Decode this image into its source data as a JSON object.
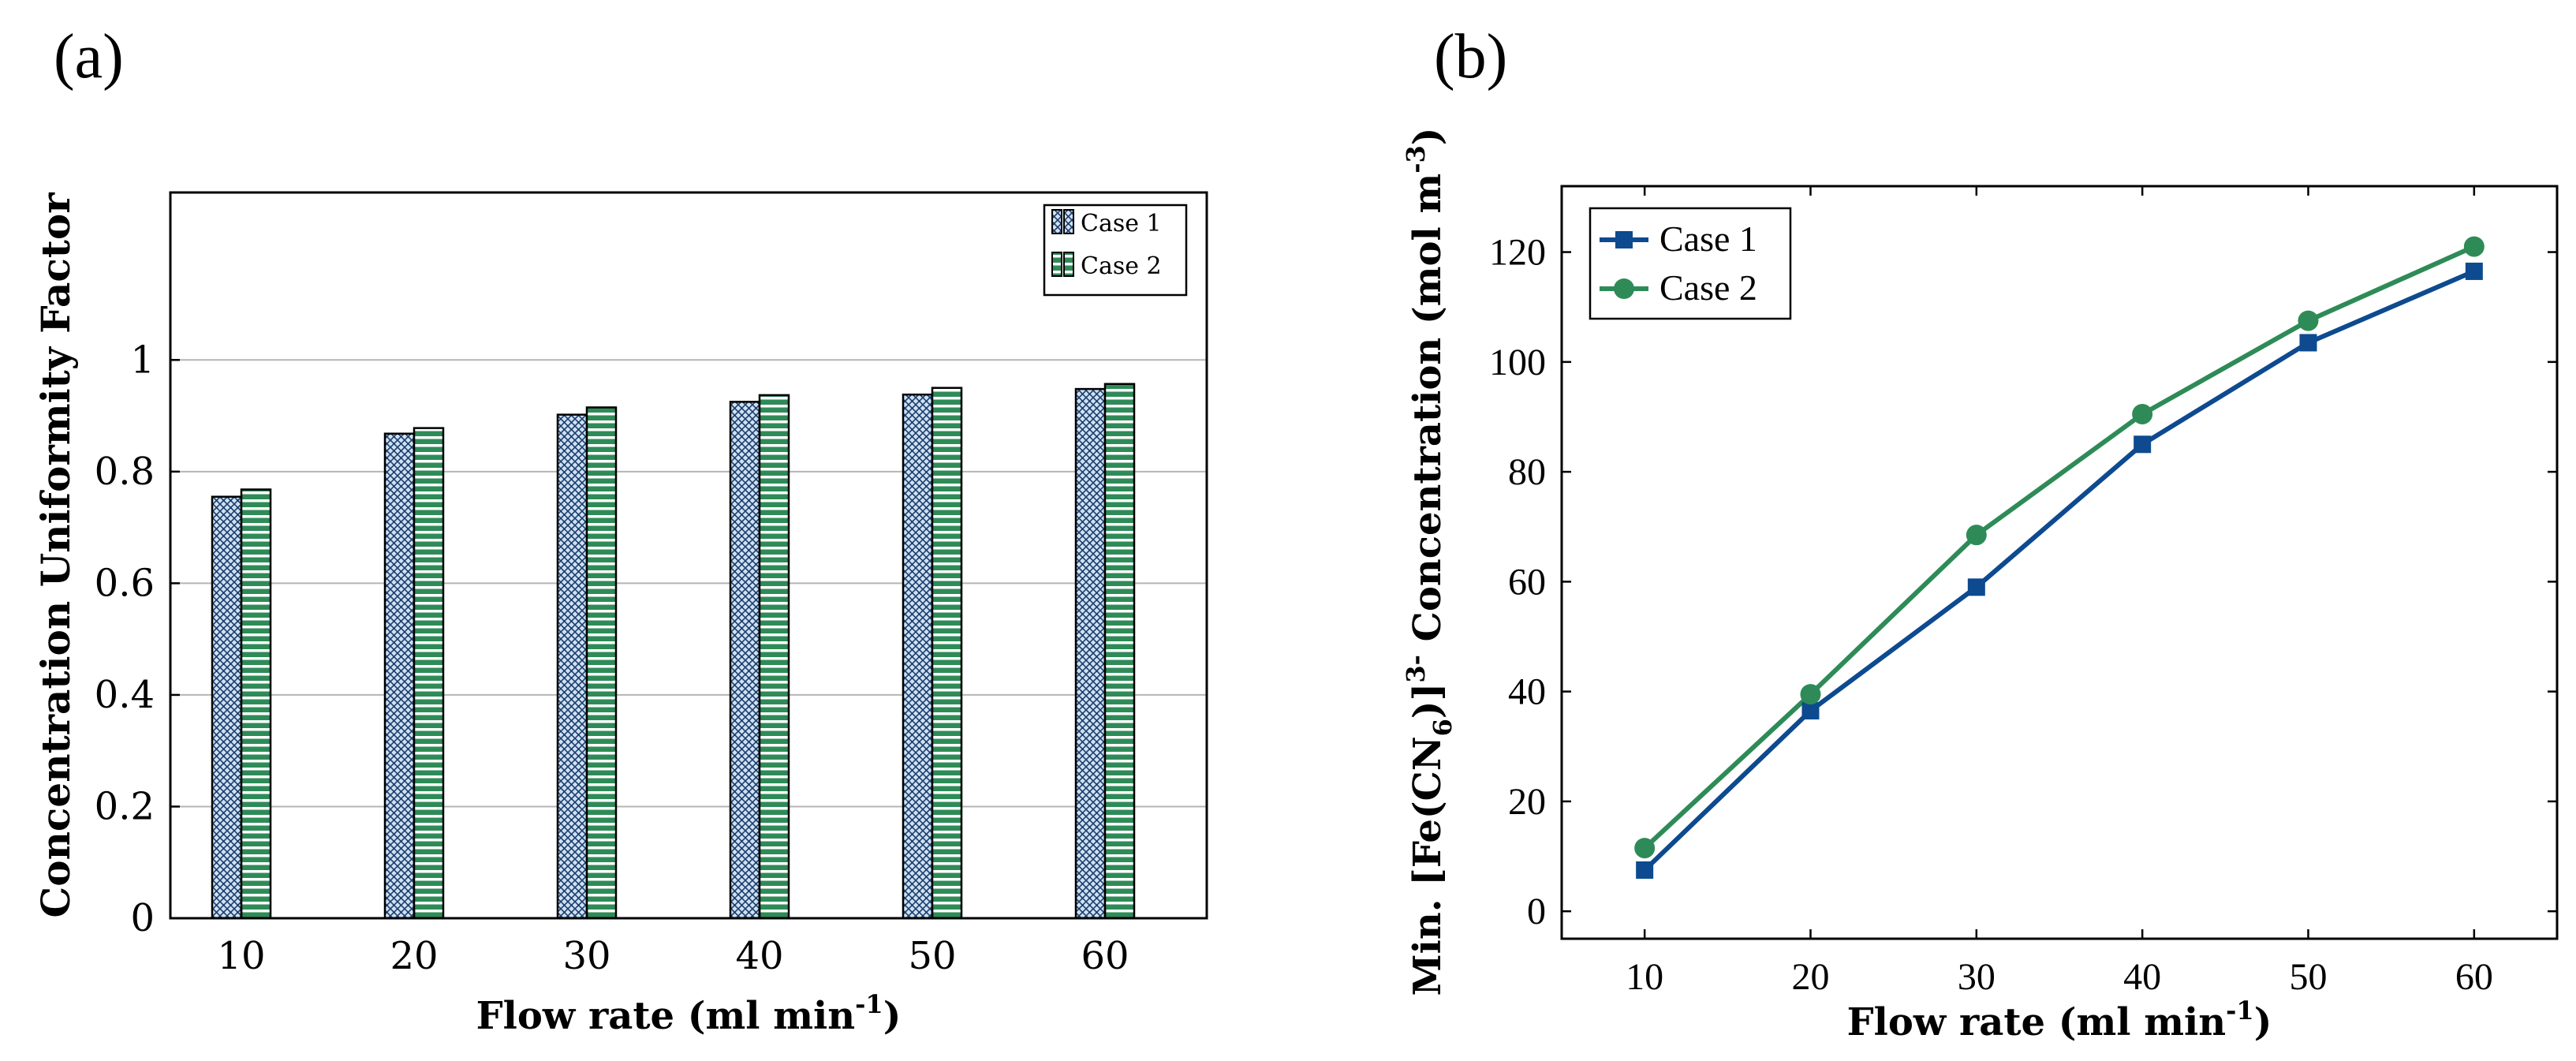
{
  "chart_data": [
    {
      "panel_label": "(a)",
      "type": "bar",
      "ylabel": "Concentration Uniformity Factor",
      "xlabel": "Flow rate (ml min",
      "xlabel_sup": "-1",
      "xlabel_end": ")",
      "categories": [
        "10",
        "20",
        "30",
        "40",
        "50",
        "60"
      ],
      "ylim": [
        0,
        1.3
      ],
      "yticks": [
        0,
        0.2,
        0.4,
        0.6,
        0.8,
        1
      ],
      "ytick_labels": [
        "0",
        "0.2",
        "0.4",
        "0.6",
        "0.8",
        "1"
      ],
      "grid": true,
      "legend_position": "top-right",
      "series": [
        {
          "name": "Case 1",
          "values": [
            0.755,
            0.868,
            0.902,
            0.925,
            0.938,
            0.948
          ],
          "color": "#cfe0f2",
          "pattern": "crosshatch-dots"
        },
        {
          "name": "Case 2",
          "values": [
            0.768,
            0.878,
            0.915,
            0.937,
            0.95,
            0.957
          ],
          "color": "#2e8b57",
          "pattern": "horizontal-lines"
        }
      ]
    },
    {
      "panel_label": "(b)",
      "type": "line",
      "ylabel_pre": "Min. [Fe(CN",
      "ylabel_sub": "6",
      "ylabel_mid": ")]",
      "ylabel_sup": "3-",
      "ylabel_post": " Concentration (mol m",
      "ylabel_sup2": "-3",
      "ylabel_end": ")",
      "xlabel": "Flow rate (ml min",
      "xlabel_sup": "-1",
      "xlabel_end": ")",
      "x": [
        10,
        20,
        30,
        40,
        50,
        60
      ],
      "xticks": [
        10,
        20,
        30,
        40,
        50,
        60
      ],
      "xlim": [
        5,
        65
      ],
      "ylim": [
        -5,
        132
      ],
      "yticks": [
        0,
        20,
        40,
        60,
        80,
        100,
        120
      ],
      "grid": false,
      "legend_position": "top-left",
      "series": [
        {
          "name": "Case 1",
          "values": [
            7.5,
            36.5,
            59,
            85,
            103.5,
            116.5
          ],
          "color": "#0d4a8f",
          "marker": "square"
        },
        {
          "name": "Case 2",
          "values": [
            11.5,
            39.5,
            68.5,
            90.5,
            107.5,
            121
          ],
          "color": "#2e8b57",
          "marker": "circle"
        }
      ]
    }
  ]
}
